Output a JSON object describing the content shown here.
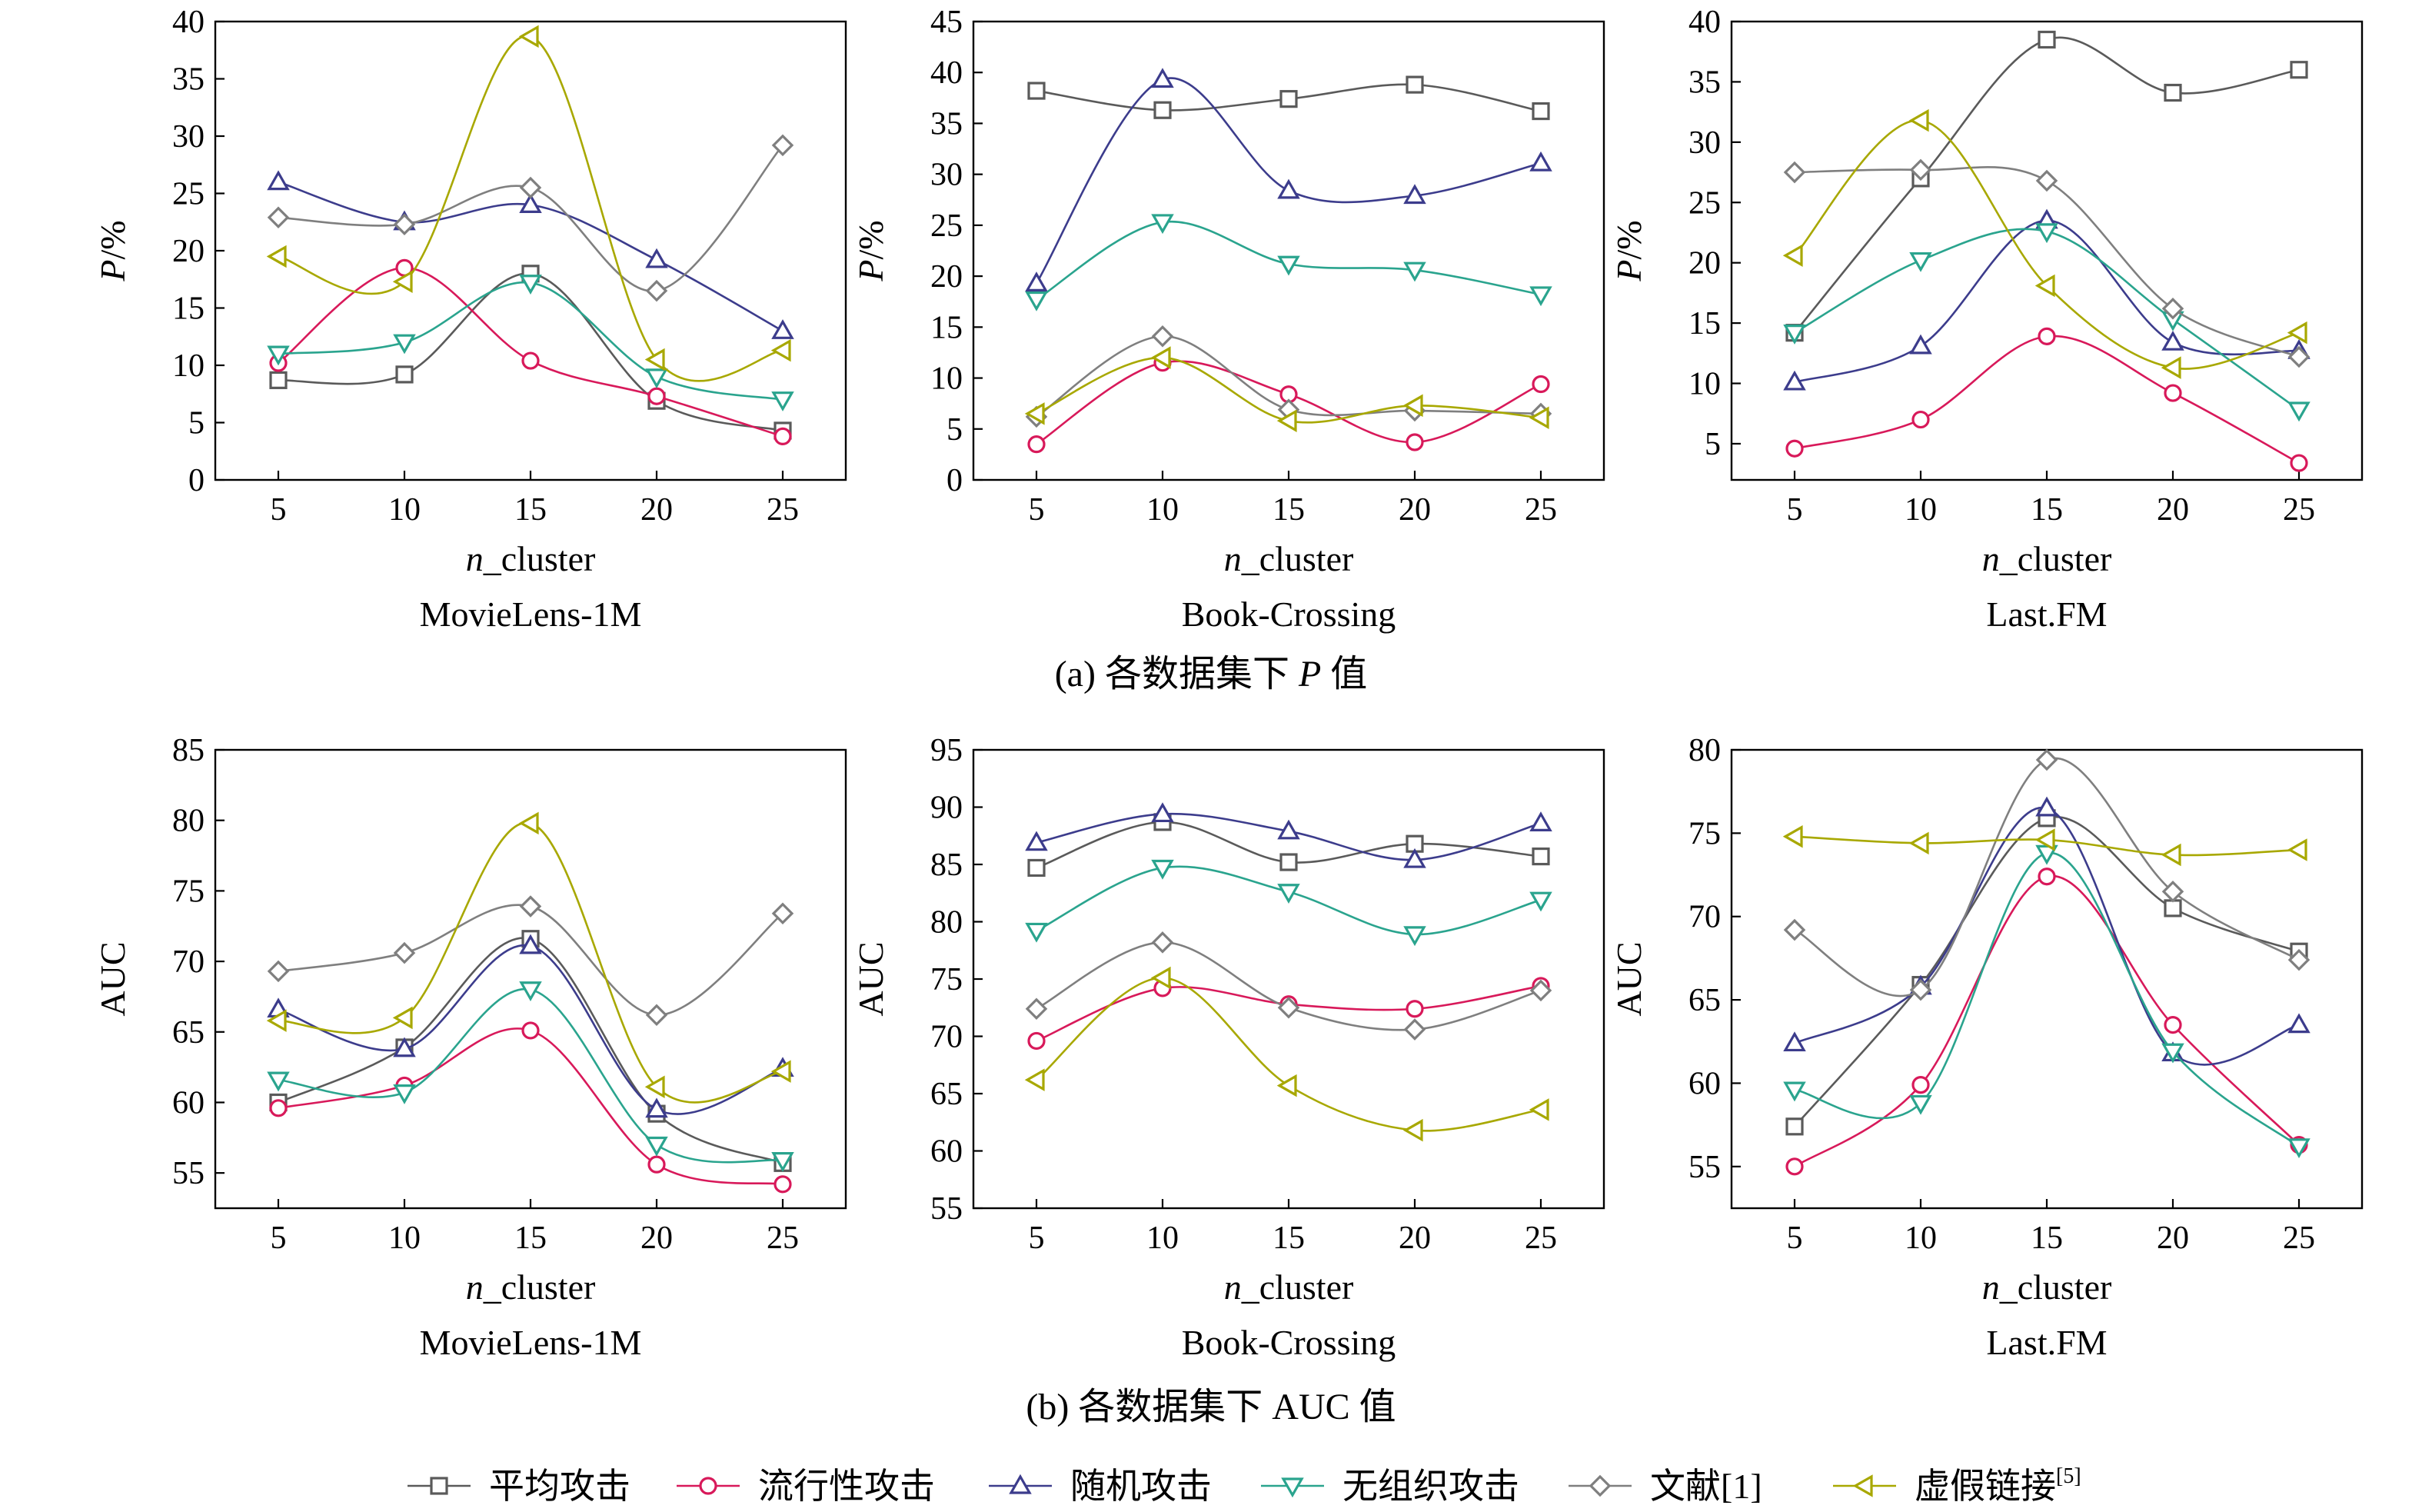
{
  "series_defs": [
    {
      "key": "avg",
      "name": "平均攻击",
      "color": "#5a5a5a",
      "marker": "square"
    },
    {
      "key": "pop",
      "name": "流行性攻击",
      "color": "#d8195a",
      "marker": "circle"
    },
    {
      "key": "rnd",
      "name": "随机攻击",
      "color": "#3c3c8c",
      "marker": "triangle-up"
    },
    {
      "key": "uno",
      "name": "无组织攻击",
      "color": "#2aa48e",
      "marker": "triangle-down"
    },
    {
      "key": "ref1",
      "name": "文献[1]",
      "color": "#7f7f7f",
      "marker": "diamond"
    },
    {
      "key": "fake",
      "name": "虚假链接",
      "name_sup": "[5]",
      "color": "#a8a800",
      "marker": "triangle-left"
    }
  ],
  "rows": [
    {
      "caption_prefix": "(a) 各数据集下 ",
      "caption_italic": "P",
      "caption_suffix": " 值"
    },
    {
      "caption_prefix": "(b) 各数据集下 AUC 值",
      "caption_italic": "",
      "caption_suffix": ""
    }
  ],
  "chart_data": [
    {
      "type": "line",
      "row": 0,
      "col": 0,
      "dataset": "MovieLens-1M",
      "xlabel_italic": "n",
      "xlabel_rest": "_cluster",
      "ylabel_italic": "P",
      "ylabel_rest": "/%",
      "ylim": [
        0,
        40
      ],
      "yticks": [
        0,
        5,
        10,
        15,
        20,
        25,
        30,
        35,
        40
      ],
      "x": [
        5,
        10,
        15,
        20,
        25
      ],
      "series": [
        {
          "key": "avg",
          "values": [
            8.7,
            9.2,
            18.0,
            6.9,
            4.3
          ]
        },
        {
          "key": "pop",
          "values": [
            10.2,
            18.5,
            10.4,
            7.3,
            3.8
          ]
        },
        {
          "key": "rnd",
          "values": [
            26.0,
            22.5,
            24.0,
            19.2,
            13.0
          ]
        },
        {
          "key": "uno",
          "values": [
            11.0,
            12.0,
            17.2,
            9.0,
            7.0
          ]
        },
        {
          "key": "ref1",
          "values": [
            22.9,
            22.3,
            25.5,
            16.5,
            29.2
          ]
        },
        {
          "key": "fake",
          "values": [
            19.5,
            17.3,
            38.7,
            10.5,
            11.3
          ]
        }
      ]
    },
    {
      "type": "line",
      "row": 0,
      "col": 1,
      "dataset": "Book-Crossing",
      "xlabel_italic": "n",
      "xlabel_rest": "_cluster",
      "ylabel_italic": "P",
      "ylabel_rest": "/%",
      "ylim": [
        0,
        45
      ],
      "yticks": [
        0,
        5,
        10,
        15,
        20,
        25,
        30,
        35,
        40,
        45
      ],
      "x": [
        5,
        10,
        15,
        20,
        25
      ],
      "series": [
        {
          "key": "avg",
          "values": [
            38.2,
            36.3,
            37.4,
            38.8,
            36.2
          ]
        },
        {
          "key": "pop",
          "values": [
            3.5,
            11.5,
            8.4,
            3.7,
            9.4
          ]
        },
        {
          "key": "rnd",
          "values": [
            19.3,
            39.3,
            28.4,
            27.9,
            31.1
          ]
        },
        {
          "key": "uno",
          "values": [
            17.7,
            25.3,
            21.2,
            20.6,
            18.2
          ]
        },
        {
          "key": "ref1",
          "values": [
            6.2,
            14.1,
            6.9,
            6.8,
            6.5
          ]
        },
        {
          "key": "fake",
          "values": [
            6.5,
            12.0,
            5.8,
            7.3,
            6.1
          ]
        }
      ]
    },
    {
      "type": "line",
      "row": 0,
      "col": 2,
      "dataset": "Last.FM",
      "xlabel_italic": "n",
      "xlabel_rest": "_cluster",
      "ylabel_italic": "P",
      "ylabel_rest": "/%",
      "ylim": [
        2,
        40
      ],
      "yticks": [
        5,
        10,
        15,
        20,
        25,
        30,
        35,
        40
      ],
      "x": [
        5,
        10,
        15,
        20,
        25
      ],
      "series": [
        {
          "key": "avg",
          "values": [
            14.2,
            27.0,
            38.5,
            34.1,
            36.0
          ]
        },
        {
          "key": "pop",
          "values": [
            4.6,
            7.0,
            13.9,
            9.2,
            3.4
          ]
        },
        {
          "key": "rnd",
          "values": [
            10.1,
            13.1,
            23.5,
            13.4,
            12.7
          ]
        },
        {
          "key": "uno",
          "values": [
            14.2,
            20.2,
            22.6,
            15.3,
            7.8
          ]
        },
        {
          "key": "ref1",
          "values": [
            27.5,
            27.7,
            26.8,
            16.2,
            12.2
          ]
        },
        {
          "key": "fake",
          "values": [
            20.6,
            31.8,
            18.1,
            11.3,
            14.2
          ]
        }
      ]
    },
    {
      "type": "line",
      "row": 1,
      "col": 0,
      "dataset": "MovieLens-1M",
      "xlabel_italic": "n",
      "xlabel_rest": "_cluster",
      "ylabel_italic": "",
      "ylabel_rest": "AUC",
      "ylim": [
        52.5,
        85
      ],
      "yticks": [
        55,
        60,
        65,
        70,
        75,
        80,
        85
      ],
      "x": [
        5,
        10,
        15,
        20,
        25
      ],
      "series": [
        {
          "key": "avg",
          "values": [
            60.0,
            63.9,
            71.6,
            59.2,
            55.7
          ]
        },
        {
          "key": "pop",
          "values": [
            59.6,
            61.2,
            65.1,
            55.6,
            54.2
          ]
        },
        {
          "key": "rnd",
          "values": [
            66.6,
            63.8,
            71.1,
            59.5,
            62.4
          ]
        },
        {
          "key": "uno",
          "values": [
            61.6,
            60.7,
            68.0,
            57.0,
            55.9
          ]
        },
        {
          "key": "ref1",
          "values": [
            69.3,
            70.6,
            73.9,
            66.2,
            73.4
          ]
        },
        {
          "key": "fake",
          "values": [
            65.8,
            66.0,
            79.8,
            61.1,
            62.2
          ]
        }
      ]
    },
    {
      "type": "line",
      "row": 1,
      "col": 1,
      "dataset": "Book-Crossing",
      "xlabel_italic": "n",
      "xlabel_rest": "_cluster",
      "ylabel_italic": "",
      "ylabel_rest": "AUC",
      "ylim": [
        55,
        95
      ],
      "yticks": [
        55,
        60,
        65,
        70,
        75,
        80,
        85,
        90,
        95
      ],
      "x": [
        5,
        10,
        15,
        20,
        25
      ],
      "series": [
        {
          "key": "avg",
          "values": [
            84.7,
            88.7,
            85.2,
            86.8,
            85.7
          ]
        },
        {
          "key": "pop",
          "values": [
            69.6,
            74.2,
            72.8,
            72.4,
            74.4
          ]
        },
        {
          "key": "rnd",
          "values": [
            86.9,
            89.4,
            87.9,
            85.4,
            88.6
          ]
        },
        {
          "key": "uno",
          "values": [
            79.2,
            84.7,
            82.6,
            78.9,
            81.9
          ]
        },
        {
          "key": "ref1",
          "values": [
            72.4,
            78.2,
            72.5,
            70.6,
            74.0
          ]
        },
        {
          "key": "fake",
          "values": [
            66.2,
            75.1,
            65.7,
            61.8,
            63.6
          ]
        }
      ]
    },
    {
      "type": "line",
      "row": 1,
      "col": 2,
      "dataset": "Last.FM",
      "xlabel_italic": "n",
      "xlabel_rest": "_cluster",
      "ylabel_italic": "",
      "ylabel_rest": "AUC",
      "ylim": [
        52.5,
        80
      ],
      "yticks": [
        55,
        60,
        65,
        70,
        75,
        80
      ],
      "x": [
        5,
        10,
        15,
        20,
        25
      ],
      "series": [
        {
          "key": "avg",
          "values": [
            57.4,
            65.9,
            75.9,
            70.5,
            67.9
          ]
        },
        {
          "key": "pop",
          "values": [
            55.0,
            59.9,
            72.4,
            63.5,
            56.3
          ]
        },
        {
          "key": "rnd",
          "values": [
            62.4,
            65.8,
            76.5,
            61.8,
            63.5
          ]
        },
        {
          "key": "uno",
          "values": [
            59.6,
            58.8,
            73.8,
            61.9,
            56.2
          ]
        },
        {
          "key": "ref1",
          "values": [
            69.2,
            65.6,
            79.4,
            71.5,
            67.4
          ]
        },
        {
          "key": "fake",
          "values": [
            74.8,
            74.4,
            74.6,
            73.7,
            74.0
          ]
        }
      ]
    }
  ]
}
